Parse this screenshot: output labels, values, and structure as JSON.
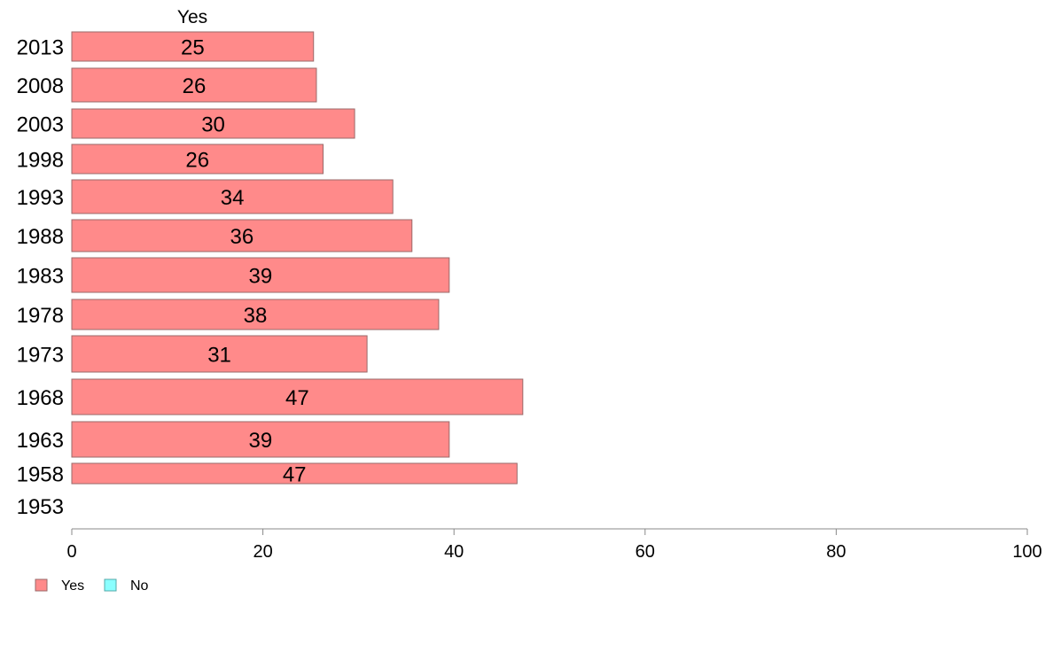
{
  "chart_data": {
    "type": "bar",
    "orientation": "horizontal",
    "column_header": "Yes",
    "categories": [
      "2013",
      "2008",
      "2003",
      "1998",
      "1993",
      "1988",
      "1983",
      "1978",
      "1973",
      "1968",
      "1963",
      "1958",
      "1953"
    ],
    "series": [
      {
        "name": "Yes",
        "values": [
          25.3,
          25.6,
          29.6,
          26.3,
          33.6,
          35.6,
          39.5,
          38.4,
          30.9,
          47.2,
          39.5,
          46.6,
          null
        ],
        "labels": [
          "25",
          "26",
          "30",
          "26",
          "34",
          "36",
          "39",
          "38",
          "31",
          "47",
          "39",
          "47",
          ""
        ]
      },
      {
        "name": "No",
        "values": [
          null,
          null,
          null,
          null,
          null,
          null,
          null,
          null,
          null,
          null,
          null,
          null,
          null
        ]
      }
    ],
    "xlim": [
      0,
      100
    ],
    "xticks": [
      "0",
      "20",
      "40",
      "60",
      "80",
      "100"
    ],
    "grid": false,
    "legend_position": "bottom-left",
    "colors": {
      "Yes": "#ff8a8a",
      "No": "#8affff",
      "bar_border": "#9a6a6a",
      "axis": "#888888"
    }
  }
}
